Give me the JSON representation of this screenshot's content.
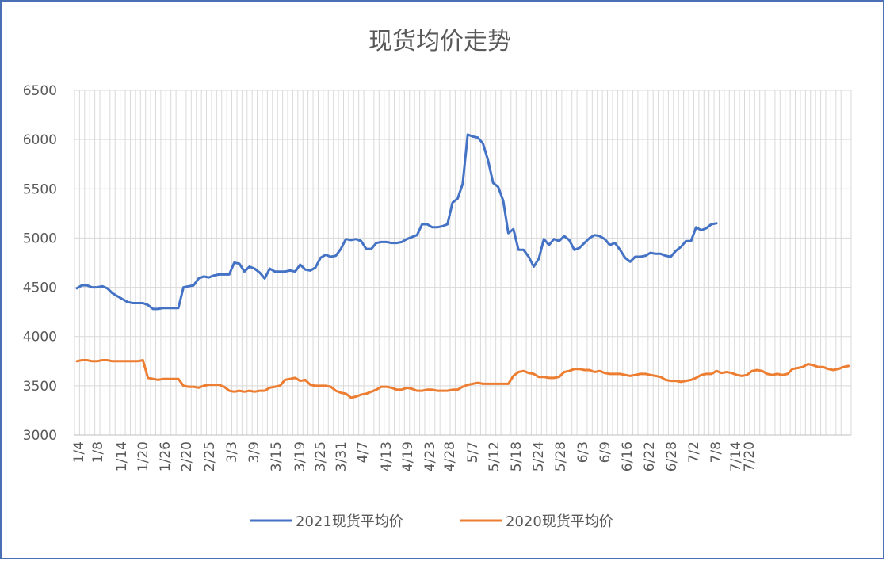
{
  "chart_data": {
    "type": "line",
    "title": "现货均价走势",
    "xlabel": "",
    "ylabel": "",
    "ylim": [
      3000,
      6500
    ],
    "y_ticks": [
      3000,
      3500,
      4000,
      4500,
      5000,
      5500,
      6000,
      6500
    ],
    "grid": true,
    "legend_position": "bottom",
    "x_tick_labels": [
      "1/4",
      "1/8",
      "1/14",
      "1/20",
      "1/26",
      "2/20",
      "2/25",
      "3/3",
      "3/9",
      "3/15",
      "3/19",
      "3/25",
      "3/31",
      "4/7",
      "4/13",
      "4/19",
      "4/23",
      "4/28",
      "5/7",
      "5/12",
      "5/18",
      "5/24",
      "5/28",
      "6/3",
      "6/9",
      "6/16",
      "6/22",
      "6/28",
      "7/2",
      "7/8",
      "7/14",
      "7/20"
    ],
    "series": [
      {
        "name": "2021现货平均价",
        "color": "#4472c4",
        "values": [
          4490,
          4520,
          4520,
          4500,
          4500,
          4510,
          4490,
          4440,
          4410,
          4380,
          4350,
          4340,
          4340,
          4340,
          4320,
          4280,
          4280,
          4290,
          4290,
          4290,
          4290,
          4500,
          4510,
          4520,
          4590,
          4610,
          4600,
          4620,
          4630,
          4630,
          4630,
          4750,
          4740,
          4660,
          4710,
          4690,
          4650,
          4590,
          4690,
          4660,
          4660,
          4660,
          4670,
          4660,
          4730,
          4680,
          4670,
          4700,
          4800,
          4830,
          4810,
          4820,
          4890,
          4990,
          4980,
          4990,
          4970,
          4890,
          4890,
          4950,
          4960,
          4960,
          4950,
          4950,
          4960,
          4990,
          5010,
          5030,
          5140,
          5140,
          5110,
          5110,
          5120,
          5140,
          5360,
          5400,
          5550,
          6050,
          6030,
          6020,
          5960,
          5790,
          5560,
          5520,
          5380,
          5050,
          5090,
          4880,
          4880,
          4810,
          4710,
          4790,
          4990,
          4930,
          4990,
          4970,
          5020,
          4980,
          4880,
          4900,
          4950,
          5000,
          5030,
          5020,
          4990,
          4930,
          4950,
          4880,
          4800,
          4760,
          4810,
          4810,
          4820,
          4850,
          4840,
          4840,
          4820,
          4810,
          4870,
          4910,
          4970,
          4970,
          5110,
          5080,
          5100,
          5140,
          5150
        ]
      },
      {
        "name": "2020现货平均价",
        "color": "#ed7d31",
        "values": [
          3750,
          3760,
          3760,
          3750,
          3750,
          3760,
          3760,
          3750,
          3750,
          3750,
          3750,
          3750,
          3750,
          3760,
          3580,
          3570,
          3560,
          3570,
          3570,
          3570,
          3570,
          3500,
          3490,
          3490,
          3480,
          3500,
          3510,
          3510,
          3510,
          3490,
          3450,
          3440,
          3450,
          3440,
          3450,
          3440,
          3450,
          3450,
          3480,
          3490,
          3500,
          3560,
          3570,
          3580,
          3550,
          3560,
          3510,
          3500,
          3500,
          3500,
          3490,
          3450,
          3430,
          3420,
          3380,
          3390,
          3410,
          3420,
          3440,
          3460,
          3490,
          3490,
          3480,
          3460,
          3460,
          3480,
          3470,
          3450,
          3450,
          3460,
          3460,
          3450,
          3450,
          3450,
          3460,
          3460,
          3490,
          3510,
          3520,
          3530,
          3520,
          3520,
          3520,
          3520,
          3520,
          3520,
          3600,
          3640,
          3650,
          3630,
          3620,
          3590,
          3590,
          3580,
          3580,
          3590,
          3640,
          3650,
          3670,
          3670,
          3660,
          3660,
          3640,
          3650,
          3630,
          3620,
          3620,
          3620,
          3610,
          3600,
          3610,
          3620,
          3620,
          3610,
          3600,
          3590,
          3560,
          3550,
          3550,
          3540,
          3550,
          3560,
          3580,
          3610,
          3620,
          3620,
          3650,
          3630,
          3640,
          3630,
          3610,
          3600,
          3610,
          3650,
          3660,
          3650,
          3620,
          3610,
          3620,
          3610,
          3620,
          3670,
          3680,
          3690,
          3720,
          3710,
          3690,
          3690,
          3670,
          3660,
          3670,
          3690,
          3700
        ]
      }
    ]
  }
}
